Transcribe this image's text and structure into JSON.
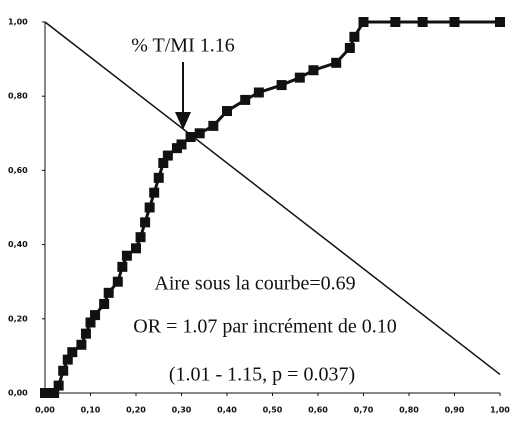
{
  "chart_data": {
    "type": "line",
    "series": [
      {
        "color": "#111111",
        "markers": true,
        "x": [
          0,
          0.02,
          0.03,
          0.04,
          0.05,
          0.06,
          0.08,
          0.09,
          0.1,
          0.11,
          0.13,
          0.14,
          0.16,
          0.17,
          0.18,
          0.2,
          0.21,
          0.22,
          0.23,
          0.24,
          0.25,
          0.26,
          0.27,
          0.29,
          0.3,
          0.32,
          0.34,
          0.37,
          0.4,
          0.44,
          0.47,
          0.52,
          0.56,
          0.59,
          0.64,
          0.67,
          0.68,
          0.7,
          0.77,
          0.83,
          0.9,
          1.0
        ],
        "values": [
          0,
          0,
          0.02,
          0.06,
          0.09,
          0.11,
          0.13,
          0.16,
          0.19,
          0.21,
          0.24,
          0.27,
          0.3,
          0.34,
          0.37,
          0.39,
          0.42,
          0.46,
          0.5,
          0.54,
          0.58,
          0.62,
          0.64,
          0.66,
          0.67,
          0.69,
          0.7,
          0.72,
          0.76,
          0.79,
          0.81,
          0.83,
          0.85,
          0.87,
          0.89,
          0.93,
          0.96,
          1.0,
          1.0,
          1.0,
          1.0,
          1.0
        ]
      },
      {
        "color": "#111111",
        "markers": false,
        "x": [
          0,
          1.0
        ],
        "values": [
          1.0,
          0.05
        ]
      }
    ],
    "annotations": [
      "% T/MI 1.16",
      "Aire sous la courbe=0.69",
      "OR = 1.07 par incrément de 0.10",
      "(1.01 - 1.15, p = 0.037)"
    ],
    "xlim": [
      0,
      1.0
    ],
    "ylim": [
      0,
      1.0
    ],
    "xticks": [
      {
        "value": 0,
        "label": "0,00"
      },
      {
        "value": 0.1,
        "label": "0,10"
      },
      {
        "value": 0.2,
        "label": "0,20"
      },
      {
        "value": 0.3,
        "label": "0,30"
      },
      {
        "value": 0.4,
        "label": "0,40"
      },
      {
        "value": 0.5,
        "label": "0,50"
      },
      {
        "value": 0.6,
        "label": "0,60"
      },
      {
        "value": 0.7,
        "label": "0,70"
      },
      {
        "value": 0.8,
        "label": "0,80"
      },
      {
        "value": 0.9,
        "label": "0,90"
      },
      {
        "value": 1.0,
        "label": "1,00"
      }
    ],
    "yticks": [
      {
        "value": 0,
        "label": "0,00"
      },
      {
        "value": 0.2,
        "label": "0,20"
      },
      {
        "value": 0.4,
        "label": "0,40"
      },
      {
        "value": 0.6,
        "label": "0,60"
      },
      {
        "value": 0.8,
        "label": "0,80"
      },
      {
        "value": 1.0,
        "label": "1,00"
      }
    ]
  }
}
